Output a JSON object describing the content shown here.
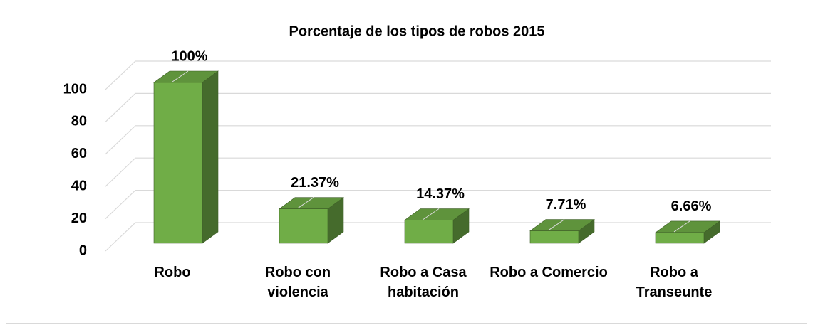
{
  "chart_data": {
    "type": "bar3d",
    "title": "Porcentaje de los tipos de robos 2015",
    "categories": [
      "Robo",
      "Robo con violencia",
      "Robo a Casa habitación",
      "Robo a Comercio",
      "Robo a Transeunte"
    ],
    "values": [
      100,
      21.37,
      14.37,
      7.71,
      6.66
    ],
    "value_labels": [
      "100%",
      "21.37%",
      "14.37%",
      "7.71%",
      "6.66%"
    ],
    "color": "#70ad47",
    "ylim": [
      0,
      100
    ],
    "yticks": [
      0,
      20,
      40,
      60,
      80,
      100
    ],
    "grid": true
  }
}
